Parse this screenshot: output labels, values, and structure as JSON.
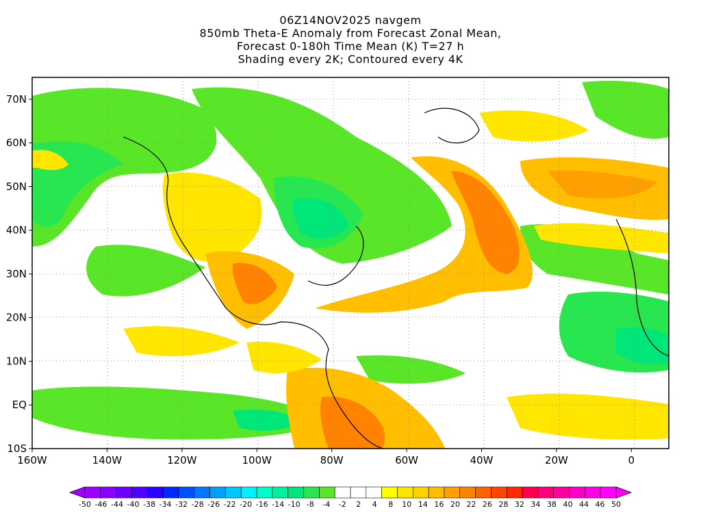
{
  "title": {
    "lines": [
      "06Z14NOV2025 navgem",
      "850mb Theta-E Anomaly from Forecast Zonal Mean,",
      "Forecast 0-180h Time Mean (K) T=27 h",
      "Shading every 2K; Contoured every 4K"
    ]
  },
  "map": {
    "lat_labels": [
      "70N",
      "60N",
      "50N",
      "40N",
      "30N",
      "20N",
      "10N",
      "EQ",
      "10S"
    ],
    "lat_values": [
      70,
      60,
      50,
      40,
      30,
      20,
      10,
      0,
      -10
    ],
    "lon_labels": [
      "160W",
      "140W",
      "120W",
      "100W",
      "80W",
      "60W",
      "40W",
      "20W",
      "0"
    ],
    "lon_values": [
      -160,
      -140,
      -120,
      -100,
      -80,
      -60,
      -40,
      -20,
      0
    ],
    "lon_range": [
      -160,
      10
    ],
    "lat_range": [
      -10,
      75
    ],
    "grid": "dotted"
  },
  "colorbar": {
    "labels": [
      "-50",
      "-46",
      "-44",
      "-40",
      "-38",
      "-34",
      "-32",
      "-28",
      "-26",
      "-22",
      "-20",
      "-16",
      "-14",
      "-10",
      "-8",
      "-4",
      "-2",
      "2",
      "4",
      "8",
      "10",
      "14",
      "16",
      "20",
      "22",
      "26",
      "28",
      "32",
      "34",
      "38",
      "40",
      "44",
      "46",
      "50"
    ],
    "colors": [
      "#a000ff",
      "#8a00ff",
      "#6e00ff",
      "#5000ff",
      "#2a00ff",
      "#0028ff",
      "#0050ff",
      "#0078ff",
      "#00a0ff",
      "#00c8ff",
      "#00f0ff",
      "#00ffc8",
      "#00f0a0",
      "#00e678",
      "#28e650",
      "#5ae628",
      "#ffffff",
      "#ffffff",
      "#ffffff",
      "#ffff00",
      "#ffe600",
      "#ffd200",
      "#ffbe00",
      "#ffa000",
      "#ff8200",
      "#ff6400",
      "#ff4600",
      "#ff2800",
      "#ff0050",
      "#ff0078",
      "#ff00a0",
      "#ff00c8",
      "#ff00e6",
      "#ff00ff"
    ]
  }
}
